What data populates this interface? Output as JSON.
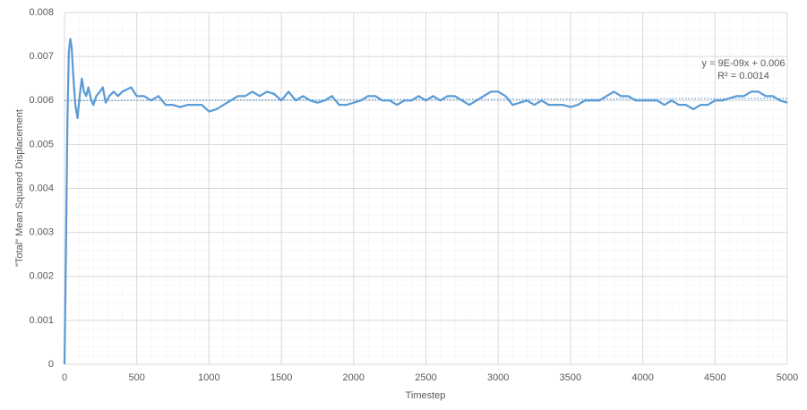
{
  "chart_data": {
    "type": "line",
    "xlabel": "Timestep",
    "ylabel": "\"Total\" Mean Squared Displacement",
    "xlim": [
      0,
      5000
    ],
    "xticks": [
      0,
      500,
      1000,
      1500,
      2000,
      2500,
      3000,
      3500,
      4000,
      4500,
      5000
    ],
    "ylim": [
      0,
      0.008
    ],
    "yticks": [
      0,
      0.001,
      0.002,
      0.003,
      0.004,
      0.005,
      0.006,
      0.007,
      0.008
    ],
    "grid": true,
    "series": [
      {
        "color": "#5b9bd5",
        "x": [
          0,
          10,
          20,
          30,
          40,
          50,
          60,
          75,
          90,
          105,
          120,
          135,
          150,
          165,
          185,
          200,
          220,
          245,
          265,
          285,
          310,
          340,
          370,
          400,
          430,
          460,
          500,
          550,
          600,
          650,
          700,
          750,
          800,
          850,
          900,
          950,
          1000,
          1050,
          1100,
          1150,
          1200,
          1250,
          1300,
          1350,
          1400,
          1450,
          1500,
          1550,
          1600,
          1650,
          1700,
          1750,
          1800,
          1850,
          1900,
          1950,
          2000,
          2050,
          2100,
          2150,
          2200,
          2250,
          2300,
          2350,
          2400,
          2450,
          2500,
          2550,
          2600,
          2650,
          2700,
          2750,
          2800,
          2850,
          2900,
          2950,
          3000,
          3050,
          3100,
          3150,
          3200,
          3250,
          3300,
          3350,
          3400,
          3450,
          3500,
          3550,
          3600,
          3650,
          3700,
          3750,
          3800,
          3850,
          3900,
          3950,
          4000,
          4050,
          4100,
          4150,
          4200,
          4250,
          4300,
          4350,
          4400,
          4450,
          4500,
          4550,
          4600,
          4650,
          4700,
          4750,
          4800,
          4850,
          4900,
          4950,
          5000
        ],
        "values": [
          0,
          0.0025,
          0.0055,
          0.0071,
          0.0074,
          0.0072,
          0.0066,
          0.0059,
          0.0056,
          0.0061,
          0.0065,
          0.0062,
          0.0061,
          0.0063,
          0.006,
          0.0059,
          0.0061,
          0.0062,
          0.0063,
          0.00595,
          0.0061,
          0.0062,
          0.0061,
          0.0062,
          0.00625,
          0.0063,
          0.0061,
          0.0061,
          0.006,
          0.0061,
          0.0059,
          0.0059,
          0.00585,
          0.0059,
          0.0059,
          0.0059,
          0.00575,
          0.0058,
          0.0059,
          0.006,
          0.0061,
          0.0061,
          0.0062,
          0.0061,
          0.0062,
          0.00615,
          0.006,
          0.0062,
          0.006,
          0.0061,
          0.006,
          0.00595,
          0.006,
          0.0061,
          0.0059,
          0.0059,
          0.00595,
          0.006,
          0.0061,
          0.0061,
          0.006,
          0.006,
          0.0059,
          0.006,
          0.006,
          0.0061,
          0.006,
          0.0061,
          0.006,
          0.0061,
          0.0061,
          0.006,
          0.0059,
          0.006,
          0.0061,
          0.0062,
          0.0062,
          0.0061,
          0.0059,
          0.00595,
          0.006,
          0.0059,
          0.006,
          0.0059,
          0.0059,
          0.0059,
          0.00585,
          0.0059,
          0.006,
          0.006,
          0.006,
          0.0061,
          0.0062,
          0.0061,
          0.0061,
          0.006,
          0.006,
          0.006,
          0.006,
          0.0059,
          0.006,
          0.0059,
          0.0059,
          0.0058,
          0.0059,
          0.0059,
          0.006,
          0.006,
          0.00605,
          0.0061,
          0.0061,
          0.0062,
          0.0062,
          0.0061,
          0.0061,
          0.006,
          0.00595
        ]
      }
    ],
    "trendline": {
      "color": "#5b9bd5",
      "x": [
        0,
        5000
      ],
      "values": [
        0.006,
        0.006045
      ],
      "equation": "y = 9E-09x + 0.006",
      "r_squared": "R² = 0.0014"
    }
  }
}
